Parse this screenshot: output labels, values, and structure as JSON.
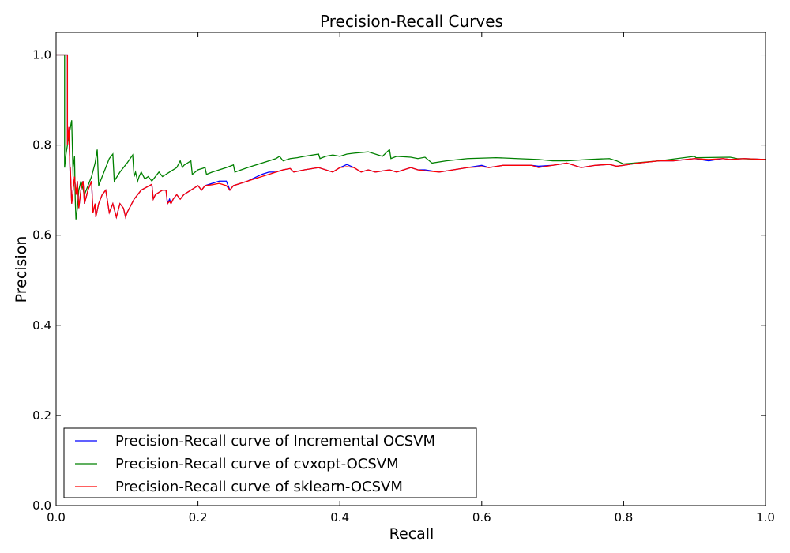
{
  "chart_data": {
    "type": "line",
    "title": "Precision-Recall Curves",
    "xlabel": "Recall",
    "ylabel": "Precision",
    "xlim": [
      0.0,
      1.0
    ],
    "ylim": [
      0.0,
      1.05
    ],
    "xticks": [
      "0.0",
      "0.2",
      "0.4",
      "0.6",
      "0.8",
      "1.0"
    ],
    "yticks": [
      "0.0",
      "0.2",
      "0.4",
      "0.6",
      "0.8",
      "1.0"
    ],
    "grid": false,
    "legend_position": "lower-left",
    "series": [
      {
        "name": "Precision-Recall curve of Incremental OCSVM",
        "color": "#0000ff",
        "x": [
          0.0,
          0.016,
          0.016,
          0.018,
          0.02,
          0.02,
          0.022,
          0.024,
          0.026,
          0.028,
          0.03,
          0.032,
          0.035,
          0.038,
          0.04,
          0.045,
          0.05,
          0.052,
          0.055,
          0.056,
          0.06,
          0.065,
          0.07,
          0.075,
          0.08,
          0.085,
          0.09,
          0.095,
          0.098,
          0.1,
          0.11,
          0.12,
          0.135,
          0.137,
          0.14,
          0.15,
          0.155,
          0.157,
          0.16,
          0.162,
          0.165,
          0.17,
          0.175,
          0.18,
          0.19,
          0.2,
          0.205,
          0.21,
          0.22,
          0.23,
          0.24,
          0.245,
          0.25,
          0.27,
          0.29,
          0.3,
          0.31,
          0.32,
          0.33,
          0.335,
          0.35,
          0.37,
          0.39,
          0.4,
          0.41,
          0.42,
          0.43,
          0.44,
          0.45,
          0.47,
          0.48,
          0.5,
          0.51,
          0.52,
          0.54,
          0.56,
          0.58,
          0.6,
          0.61,
          0.63,
          0.65,
          0.67,
          0.68,
          0.7,
          0.72,
          0.74,
          0.76,
          0.78,
          0.79,
          0.8,
          0.82,
          0.85,
          0.87,
          0.9,
          0.92,
          0.94,
          0.95,
          0.97,
          1.0
        ],
        "y": [
          1.0,
          1.0,
          0.8,
          0.84,
          0.72,
          0.75,
          0.67,
          0.7,
          0.73,
          0.69,
          0.72,
          0.66,
          0.7,
          0.72,
          0.67,
          0.7,
          0.72,
          0.65,
          0.67,
          0.64,
          0.67,
          0.69,
          0.7,
          0.65,
          0.67,
          0.64,
          0.67,
          0.66,
          0.64,
          0.65,
          0.68,
          0.7,
          0.713,
          0.68,
          0.69,
          0.7,
          0.7,
          0.67,
          0.68,
          0.67,
          0.68,
          0.69,
          0.68,
          0.69,
          0.7,
          0.71,
          0.7,
          0.71,
          0.715,
          0.72,
          0.72,
          0.7,
          0.71,
          0.72,
          0.735,
          0.74,
          0.74,
          0.745,
          0.748,
          0.74,
          0.745,
          0.75,
          0.74,
          0.75,
          0.757,
          0.75,
          0.74,
          0.745,
          0.74,
          0.745,
          0.74,
          0.75,
          0.745,
          0.745,
          0.74,
          0.745,
          0.75,
          0.755,
          0.75,
          0.755,
          0.755,
          0.755,
          0.753,
          0.755,
          0.76,
          0.75,
          0.755,
          0.757,
          0.753,
          0.755,
          0.76,
          0.765,
          0.765,
          0.77,
          0.765,
          0.77,
          0.768,
          0.77,
          0.768
        ]
      },
      {
        "name": "Precision-Recall curve of cvxopt-OCSVM",
        "color": "#008000",
        "x": [
          0.0,
          0.012,
          0.012,
          0.014,
          0.018,
          0.022,
          0.024,
          0.024,
          0.026,
          0.027,
          0.028,
          0.03,
          0.032,
          0.035,
          0.04,
          0.045,
          0.05,
          0.055,
          0.058,
          0.06,
          0.065,
          0.07,
          0.075,
          0.08,
          0.082,
          0.09,
          0.1,
          0.108,
          0.11,
          0.112,
          0.115,
          0.117,
          0.12,
          0.125,
          0.13,
          0.135,
          0.14,
          0.145,
          0.15,
          0.16,
          0.17,
          0.175,
          0.178,
          0.18,
          0.19,
          0.192,
          0.2,
          0.21,
          0.212,
          0.22,
          0.23,
          0.24,
          0.25,
          0.252,
          0.27,
          0.3,
          0.31,
          0.315,
          0.32,
          0.33,
          0.34,
          0.35,
          0.37,
          0.372,
          0.38,
          0.39,
          0.4,
          0.41,
          0.42,
          0.44,
          0.46,
          0.47,
          0.472,
          0.48,
          0.5,
          0.51,
          0.52,
          0.53,
          0.55,
          0.58,
          0.62,
          0.65,
          0.68,
          0.7,
          0.72,
          0.75,
          0.78,
          0.79,
          0.8,
          0.85,
          0.9,
          0.902,
          0.95,
          0.96,
          1.0
        ],
        "y": [
          1.0,
          1.0,
          0.75,
          0.78,
          0.82,
          0.855,
          0.73,
          0.75,
          0.775,
          0.68,
          0.635,
          0.66,
          0.7,
          0.72,
          0.69,
          0.71,
          0.73,
          0.76,
          0.79,
          0.71,
          0.73,
          0.75,
          0.77,
          0.78,
          0.72,
          0.74,
          0.76,
          0.778,
          0.73,
          0.74,
          0.72,
          0.73,
          0.74,
          0.725,
          0.73,
          0.72,
          0.73,
          0.74,
          0.73,
          0.74,
          0.75,
          0.765,
          0.75,
          0.755,
          0.765,
          0.735,
          0.745,
          0.75,
          0.735,
          0.74,
          0.745,
          0.75,
          0.756,
          0.74,
          0.75,
          0.765,
          0.77,
          0.775,
          0.765,
          0.77,
          0.772,
          0.775,
          0.78,
          0.77,
          0.775,
          0.778,
          0.775,
          0.78,
          0.782,
          0.785,
          0.775,
          0.79,
          0.77,
          0.775,
          0.773,
          0.77,
          0.773,
          0.76,
          0.765,
          0.77,
          0.772,
          0.77,
          0.768,
          0.765,
          0.765,
          0.768,
          0.77,
          0.765,
          0.758,
          0.765,
          0.775,
          0.772,
          0.773,
          0.77,
          0.768
        ]
      },
      {
        "name": "Precision-Recall curve of sklearn-OCSVM",
        "color": "#ff0000",
        "x": [
          0.0,
          0.016,
          0.016,
          0.018,
          0.02,
          0.02,
          0.022,
          0.024,
          0.026,
          0.028,
          0.03,
          0.032,
          0.035,
          0.038,
          0.04,
          0.045,
          0.05,
          0.052,
          0.055,
          0.056,
          0.06,
          0.065,
          0.07,
          0.075,
          0.08,
          0.085,
          0.09,
          0.095,
          0.098,
          0.1,
          0.11,
          0.12,
          0.135,
          0.137,
          0.14,
          0.15,
          0.155,
          0.157,
          0.16,
          0.162,
          0.165,
          0.17,
          0.175,
          0.18,
          0.19,
          0.2,
          0.205,
          0.21,
          0.22,
          0.23,
          0.24,
          0.245,
          0.25,
          0.27,
          0.29,
          0.3,
          0.31,
          0.32,
          0.33,
          0.335,
          0.35,
          0.37,
          0.39,
          0.4,
          0.41,
          0.42,
          0.43,
          0.44,
          0.45,
          0.47,
          0.48,
          0.5,
          0.51,
          0.52,
          0.54,
          0.56,
          0.58,
          0.6,
          0.61,
          0.63,
          0.65,
          0.67,
          0.68,
          0.7,
          0.72,
          0.74,
          0.76,
          0.78,
          0.79,
          0.8,
          0.82,
          0.85,
          0.87,
          0.9,
          0.92,
          0.94,
          0.95,
          0.97,
          1.0
        ],
        "y": [
          1.0,
          1.0,
          0.8,
          0.84,
          0.72,
          0.75,
          0.67,
          0.7,
          0.73,
          0.69,
          0.72,
          0.66,
          0.7,
          0.72,
          0.67,
          0.7,
          0.72,
          0.65,
          0.67,
          0.64,
          0.67,
          0.69,
          0.7,
          0.65,
          0.67,
          0.64,
          0.67,
          0.66,
          0.64,
          0.65,
          0.68,
          0.7,
          0.713,
          0.68,
          0.69,
          0.7,
          0.7,
          0.67,
          0.675,
          0.67,
          0.68,
          0.69,
          0.68,
          0.69,
          0.7,
          0.71,
          0.7,
          0.71,
          0.712,
          0.715,
          0.71,
          0.7,
          0.71,
          0.72,
          0.73,
          0.735,
          0.74,
          0.745,
          0.748,
          0.74,
          0.745,
          0.75,
          0.74,
          0.75,
          0.752,
          0.75,
          0.74,
          0.745,
          0.74,
          0.745,
          0.74,
          0.75,
          0.745,
          0.743,
          0.74,
          0.745,
          0.75,
          0.752,
          0.75,
          0.755,
          0.755,
          0.755,
          0.75,
          0.755,
          0.76,
          0.75,
          0.755,
          0.757,
          0.753,
          0.755,
          0.76,
          0.765,
          0.765,
          0.77,
          0.768,
          0.77,
          0.768,
          0.77,
          0.768
        ]
      }
    ]
  }
}
